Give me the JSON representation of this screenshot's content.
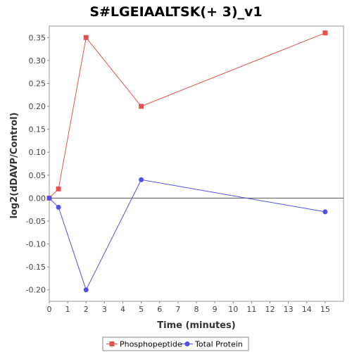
{
  "chart_data": {
    "type": "line",
    "title": "S#LGEIAALTSK(+ 3)_v1",
    "xlabel": "Time (minutes)",
    "ylabel": "log2(dDAVP/Control)",
    "xlim": [
      0,
      16
    ],
    "ylim": [
      -0.225,
      0.375
    ],
    "x_ticks": [
      0,
      1,
      2,
      3,
      4,
      5,
      6,
      7,
      8,
      9,
      10,
      11,
      12,
      13,
      14,
      15
    ],
    "y_ticks": [
      -0.2,
      -0.15,
      -0.1,
      -0.05,
      0.0,
      0.05,
      0.1,
      0.15,
      0.2,
      0.25,
      0.3,
      0.35
    ],
    "y_tick_labels": [
      "-0.20",
      "-0.15",
      "-0.10",
      "-0.05",
      "0.00",
      "0.05",
      "0.10",
      "0.15",
      "0.20",
      "0.25",
      "0.30",
      "0.35"
    ],
    "zero_line": true,
    "grid": false,
    "legend_position": "bottom-center",
    "series": [
      {
        "name": "Phosphopeptide",
        "color": "#e85050",
        "marker": "square",
        "x": [
          0,
          0.5,
          2,
          5,
          15
        ],
        "y": [
          0.0,
          0.02,
          0.35,
          0.2,
          0.36
        ]
      },
      {
        "name": "Total Protein",
        "color": "#5050e8",
        "marker": "circle",
        "x": [
          0,
          0.5,
          2,
          5,
          15
        ],
        "y": [
          0.0,
          -0.02,
          -0.2,
          0.04,
          -0.03
        ]
      }
    ]
  }
}
